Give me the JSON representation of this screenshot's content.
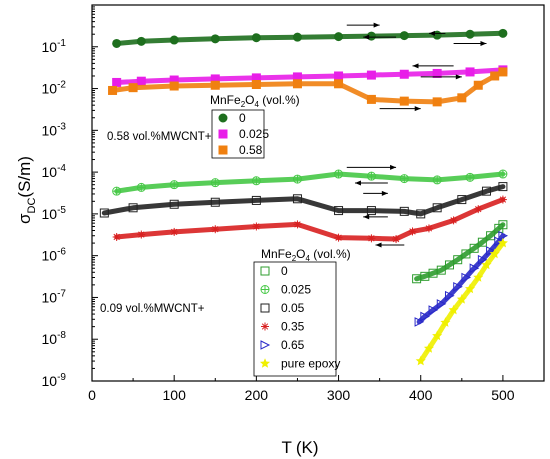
{
  "chart_data": {
    "type": "scatter",
    "xlabel_main": "T",
    "xlabel_unit": "(K)",
    "ylabel_main": "σ",
    "ylabel_sub": "DC",
    "ylabel_unit": "(S/m)",
    "xlim": [
      0,
      550
    ],
    "ylim_log10": [
      -9,
      0
    ],
    "y_log_scale": true,
    "grid": false,
    "x_ticks": [
      "0",
      "100",
      "200",
      "300",
      "400",
      "500"
    ],
    "y_ticks": [
      {
        "base": "10",
        "exp": "-1"
      },
      {
        "base": "10",
        "exp": "-2"
      },
      {
        "base": "10",
        "exp": "-3"
      },
      {
        "base": "10",
        "exp": "-4"
      },
      {
        "base": "10",
        "exp": "-5"
      },
      {
        "base": "10",
        "exp": "-6"
      },
      {
        "base": "10",
        "exp": "-7"
      },
      {
        "base": "10",
        "exp": "-8"
      },
      {
        "base": "10",
        "exp": "-9"
      }
    ],
    "legend_top": {
      "title_main": "MnFe",
      "title_sub": "2",
      "title_main2": "O",
      "title_sub2": "4",
      "title_tail": " (vol.%)",
      "group_label": "0.58 vol.%MWCNT+",
      "entries": [
        {
          "label": "0",
          "color": "#1e6f1e",
          "marker": "circle"
        },
        {
          "label": "0.025",
          "color": "#e81ee8",
          "marker": "square"
        },
        {
          "label": "0.58",
          "color": "#f08010",
          "marker": "square"
        }
      ]
    },
    "legend_bottom": {
      "title_main": "MnFe",
      "title_sub": "2",
      "title_main2": "O",
      "title_sub2": "4",
      "title_tail": " (vol.%)",
      "group_label": "0.09 vol.%MWCNT+",
      "entries": [
        {
          "label": "0",
          "color": "#2e9c2e",
          "marker": "open-square"
        },
        {
          "label": "0.025",
          "color": "#46c846",
          "marker": "crossed-circle"
        },
        {
          "label": "0.05",
          "color": "#222222",
          "marker": "open-square"
        },
        {
          "label": "0.35",
          "color": "#d82020",
          "marker": "asterisk"
        },
        {
          "label": "0.65",
          "color": "#2828c8",
          "marker": "open-triangle-right"
        },
        {
          "label": "pure epoxy",
          "color": "#f0f000",
          "marker": "star"
        }
      ]
    },
    "series": [
      {
        "group": "0.58 vol.%MWCNT+",
        "name": "0",
        "color": "#1e6f1e",
        "marker": "circle",
        "x": [
          30,
          60,
          100,
          150,
          200,
          250,
          300,
          340,
          380,
          420,
          460,
          500
        ],
        "y": [
          0.12,
          0.135,
          0.145,
          0.155,
          0.165,
          0.17,
          0.175,
          0.18,
          0.185,
          0.19,
          0.2,
          0.21
        ]
      },
      {
        "group": "0.58 vol.%MWCNT+",
        "name": "0.025",
        "color": "#e81ee8",
        "marker": "square",
        "x": [
          30,
          60,
          100,
          150,
          200,
          250,
          300,
          340,
          380,
          420,
          460,
          500
        ],
        "y": [
          0.014,
          0.015,
          0.016,
          0.017,
          0.018,
          0.019,
          0.02,
          0.021,
          0.022,
          0.023,
          0.025,
          0.028
        ]
      },
      {
        "group": "0.58 vol.%MWCNT+",
        "name": "0.58",
        "color": "#f08010",
        "marker": "square",
        "x": [
          25,
          50,
          100,
          150,
          200,
          250,
          300,
          340,
          380,
          420,
          450,
          470,
          490,
          500
        ],
        "y": [
          0.009,
          0.0105,
          0.0115,
          0.012,
          0.0125,
          0.013,
          0.013,
          0.0055,
          0.005,
          0.0048,
          0.006,
          0.012,
          0.02,
          0.025
        ]
      },
      {
        "group": "0.09 vol.%MWCNT+",
        "name": "0",
        "color": "#2e9c2e",
        "marker": "open-square",
        "x": [
          395,
          405,
          415,
          425,
          435,
          445,
          455,
          465,
          475,
          485,
          495,
          500
        ],
        "y": [
          2.8e-07,
          3.2e-07,
          3.8e-07,
          4.5e-07,
          6e-07,
          8e-07,
          1.1e-06,
          1.5e-06,
          2.1e-06,
          3e-06,
          4.5e-06,
          5.5e-06
        ]
      },
      {
        "group": "0.09 vol.%MWCNT+",
        "name": "0.025",
        "color": "#46c846",
        "marker": "crossed-circle",
        "x": [
          30,
          60,
          100,
          150,
          200,
          250,
          300,
          340,
          380,
          420,
          460,
          500
        ],
        "y": [
          3.5e-05,
          4.3e-05,
          5e-05,
          5.6e-05,
          6.2e-05,
          6.8e-05,
          9e-05,
          8e-05,
          7e-05,
          6.5e-05,
          7.5e-05,
          9e-05
        ]
      },
      {
        "group": "0.09 vol.%MWCNT+",
        "name": "0.05",
        "color": "#222222",
        "marker": "open-square",
        "x": [
          15,
          50,
          100,
          150,
          200,
          250,
          300,
          340,
          380,
          400,
          420,
          450,
          480,
          500
        ],
        "y": [
          1.05e-05,
          1.4e-05,
          1.7e-05,
          1.9e-05,
          2.1e-05,
          2.3e-05,
          1.2e-05,
          1.2e-05,
          1.15e-05,
          1e-05,
          1.4e-05,
          2.2e-05,
          3.5e-05,
          4.5e-05
        ]
      },
      {
        "group": "0.09 vol.%MWCNT+",
        "name": "0.35",
        "color": "#d82020",
        "marker": "asterisk",
        "x": [
          30,
          60,
          100,
          150,
          200,
          250,
          300,
          340,
          370,
          390,
          410,
          440,
          470,
          500
        ],
        "y": [
          2.8e-06,
          3.2e-06,
          3.7e-06,
          4.3e-06,
          5e-06,
          5.6e-06,
          2.7e-06,
          2.6e-06,
          2.5e-06,
          3.8e-06,
          4.5e-06,
          7e-06,
          1.3e-05,
          2.2e-05
        ]
      },
      {
        "group": "0.09 vol.%MWCNT+",
        "name": "0.65",
        "color": "#2828c8",
        "marker": "open-triangle-right",
        "x": [
          398,
          405,
          415,
          425,
          435,
          445,
          455,
          465,
          475,
          485,
          495,
          500
        ],
        "y": [
          2.6e-08,
          3.5e-08,
          5e-08,
          7e-08,
          1.1e-07,
          1.8e-07,
          3e-07,
          5e-07,
          8e-07,
          1.3e-06,
          2.2e-06,
          3e-06
        ]
      },
      {
        "group": "0.09 vol.%MWCNT+",
        "name": "pure epoxy",
        "color": "#f0f000",
        "marker": "star",
        "x": [
          400,
          410,
          420,
          430,
          440,
          450,
          460,
          470,
          480,
          490,
          500
        ],
        "y": [
          3e-09,
          6e-09,
          1.2e-08,
          2.5e-08,
          5e-08,
          9e-08,
          1.6e-07,
          3e-07,
          6e-07,
          1.1e-06,
          2e-06
        ]
      }
    ],
    "annotations": [
      {
        "type": "arrow",
        "direction": "left",
        "x1": 430,
        "x2": 410,
        "y": 0.21
      },
      {
        "type": "arrow",
        "direction": "right",
        "x1": 310,
        "x2": 350,
        "y": 0.33
      },
      {
        "type": "arrow",
        "direction": "right",
        "x1": 440,
        "x2": 480,
        "y": 0.12
      },
      {
        "type": "arrow",
        "direction": "left",
        "x1": 370,
        "x2": 330,
        "y": 0.17
      },
      {
        "type": "arrow",
        "direction": "right",
        "x1": 400,
        "x2": 450,
        "y": 0.019
      },
      {
        "type": "arrow",
        "direction": "left",
        "x1": 440,
        "x2": 390,
        "y": 0.035
      },
      {
        "type": "arrow",
        "direction": "right",
        "x1": 350,
        "x2": 400,
        "y": 0.0033
      },
      {
        "type": "arrow",
        "direction": "right",
        "x1": 310,
        "x2": 370,
        "y": 0.00013
      },
      {
        "type": "arrow",
        "direction": "left",
        "x1": 360,
        "x2": 320,
        "y": 5.5e-05
      },
      {
        "type": "arrow",
        "direction": "left",
        "x1": 360,
        "x2": 330,
        "y": 8.5e-06
      },
      {
        "type": "arrow",
        "direction": "left",
        "x1": 380,
        "x2": 345,
        "y": 1.8e-06
      },
      {
        "type": "arrow",
        "direction": "right",
        "x1": 330,
        "x2": 360,
        "y": 3.1e-05
      }
    ]
  }
}
